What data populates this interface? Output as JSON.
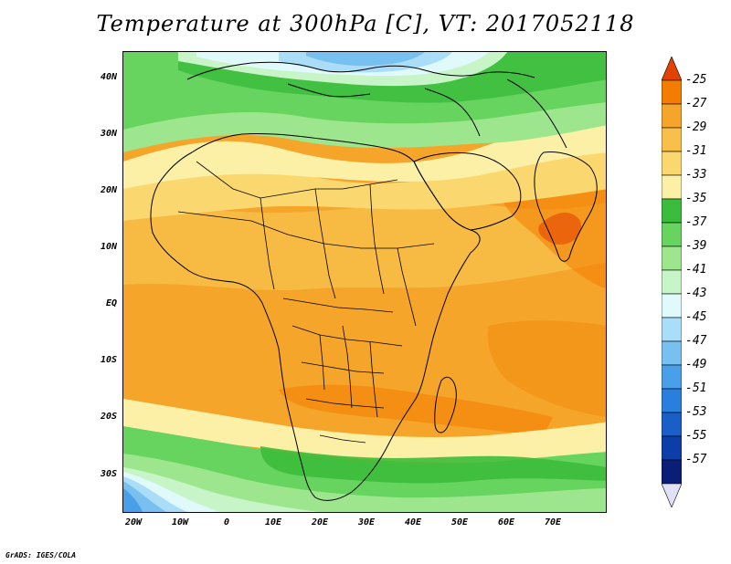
{
  "title": "Temperature at 300hPa [C], VT: 2017052118",
  "credit": "GrADS: IGES/COLA",
  "lat_labels": [
    "40N",
    "30N",
    "20N",
    "10N",
    "EQ",
    "10S",
    "20S",
    "30S"
  ],
  "lon_labels": [
    "20W",
    "10W",
    "0",
    "10E",
    "20E",
    "30E",
    "40E",
    "50E",
    "60E",
    "70E"
  ],
  "colorbar": {
    "labels": [
      "-25",
      "-27",
      "-29",
      "-31",
      "-33",
      "-35",
      "-37",
      "-39",
      "-41",
      "-43",
      "-45",
      "-47",
      "-49",
      "-51",
      "-53",
      "-55",
      "-57"
    ],
    "colors": [
      "#e24200",
      "#f27d00",
      "#f5a52a",
      "#f8bf4a",
      "#fad86f",
      "#fcf0a6",
      "#3cbc3c",
      "#66d45e",
      "#9ee68e",
      "#c8f5c8",
      "#e0fafc",
      "#aaddf8",
      "#78c0f0",
      "#4aa0e8",
      "#2a7fdc",
      "#1a5fc8",
      "#0d3ea8",
      "#0a1e78"
    ],
    "over_color": "#e24200",
    "under_color": "#e0e0f8"
  },
  "map": {
    "extent_lon": [
      -24,
      80
    ],
    "extent_lat": [
      -37,
      46
    ],
    "colors": {
      "orange_dark": "#f27d00",
      "orange": "#f5a52a",
      "orange_light": "#f8bf4a",
      "yellow": "#fad86f",
      "cream": "#fcf0a6",
      "green_dark": "#3cbc3c",
      "green": "#66d45e",
      "green_light": "#9ee68e",
      "mint": "#c8f5c8",
      "cyan": "#e0fafc",
      "blue_light": "#aaddf8",
      "blue": "#78c0f0",
      "blue_mid": "#4aa0e8",
      "coast": "#000000"
    }
  }
}
